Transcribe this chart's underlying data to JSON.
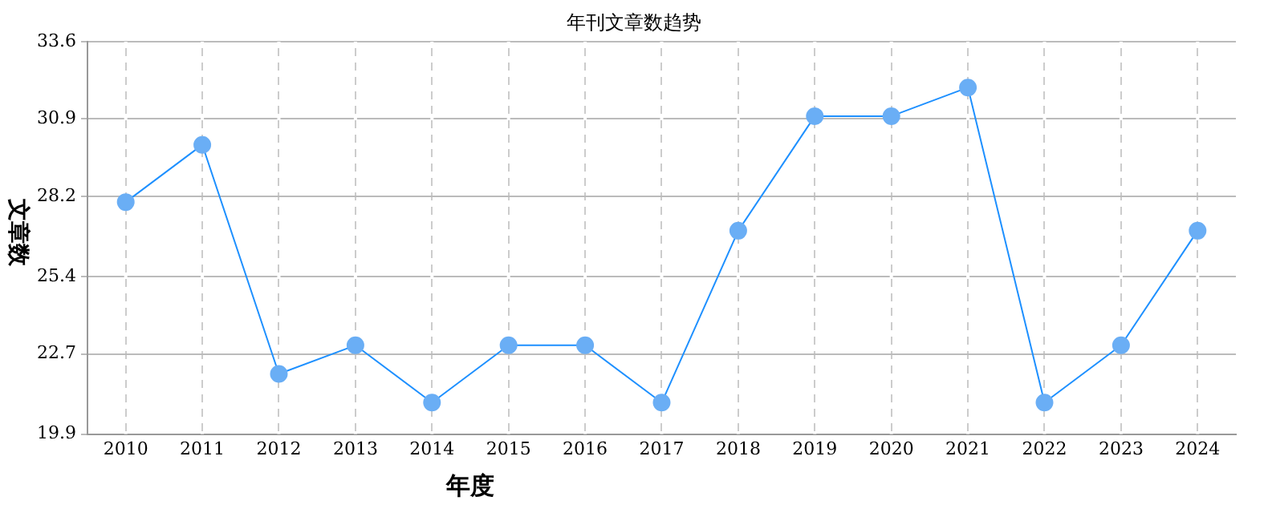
{
  "chart_data": {
    "type": "line",
    "title": "年刊文章数趋势",
    "xlabel": "年度",
    "ylabel": "文章数",
    "categories": [
      "2010",
      "2011",
      "2012",
      "2013",
      "2014",
      "2015",
      "2016",
      "2017",
      "2018",
      "2019",
      "2020",
      "2021",
      "2022",
      "2023",
      "2024"
    ],
    "series": [
      {
        "color": "#1e90ff",
        "values": [
          28,
          30,
          22,
          23,
          21,
          23,
          23,
          21,
          27,
          31,
          31,
          32,
          21,
          23,
          27
        ]
      }
    ],
    "ylim": [
      19.9,
      33.6
    ],
    "yticks": [
      19.9,
      22.7,
      25.4,
      28.2,
      30.9,
      33.6
    ],
    "grid": true,
    "legend": false,
    "marker": "circle",
    "line_style": "solid"
  }
}
